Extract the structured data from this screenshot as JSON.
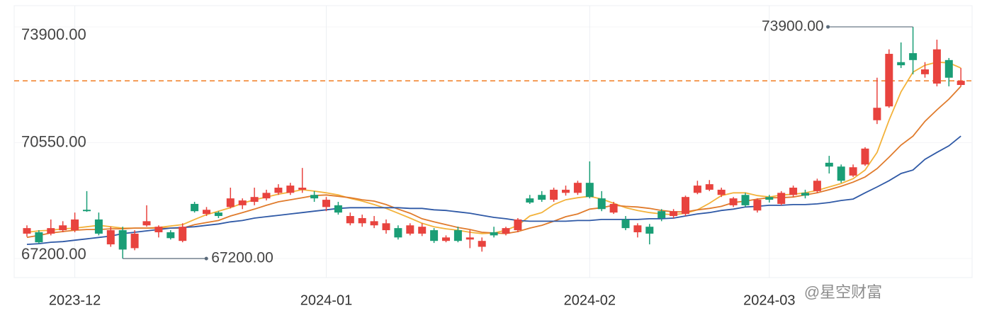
{
  "chart_data": {
    "type": "candlestick",
    "categories": [
      null,
      null,
      null,
      null,
      "2023-12",
      null,
      null,
      null,
      null,
      null,
      null,
      null,
      null,
      null,
      null,
      null,
      null,
      null,
      null,
      null,
      null,
      null,
      null,
      null,
      null,
      "2024-01",
      null,
      null,
      null,
      null,
      null,
      null,
      null,
      null,
      null,
      null,
      null,
      null,
      null,
      null,
      null,
      null,
      null,
      null,
      null,
      null,
      null,
      "2024-02",
      null,
      null,
      null,
      null,
      null,
      null,
      null,
      null,
      null,
      null,
      null,
      null,
      null,
      null,
      "2024-03",
      null,
      null,
      null,
      null,
      null,
      null,
      null,
      null,
      null,
      null,
      null,
      null,
      null,
      null,
      null,
      null
    ],
    "open": [
      67920,
      67960,
      67920,
      68020,
      68020,
      68610,
      68330,
      67610,
      68020,
      67500,
      68160,
      67960,
      67960,
      67710,
      68780,
      68490,
      68530,
      68690,
      68740,
      68840,
      68940,
      69100,
      69100,
      69190,
      69040,
      68690,
      68740,
      68220,
      68220,
      68160,
      68020,
      68080,
      67920,
      67920,
      68020,
      67710,
      68020,
      67750,
      67540,
      67960,
      67920,
      68020,
      68940,
      69040,
      68900,
      69100,
      69100,
      69390,
      68940,
      68530,
      68330,
      67960,
      68120,
      68570,
      68430,
      68490,
      69100,
      69190,
      69040,
      68740,
      69040,
      68590,
      68980,
      68780,
      69040,
      69100,
      69150,
      69970,
      69860,
      69600,
      69920,
      71200,
      71600,
      72880,
      73140,
      72530,
      72260,
      72940,
      72220
    ],
    "close": [
      68080,
      67670,
      68080,
      68160,
      68330,
      68570,
      67920,
      68020,
      67460,
      67920,
      68280,
      68120,
      67790,
      68120,
      68570,
      68610,
      68430,
      68940,
      68880,
      68980,
      69100,
      69250,
      69310,
      69250,
      68940,
      68900,
      68530,
      68430,
      68370,
      68280,
      68220,
      67810,
      68160,
      68120,
      67710,
      67810,
      67710,
      67810,
      67710,
      67870,
      68080,
      68330,
      68820,
      68900,
      69190,
      69190,
      69390,
      68980,
      68630,
      68780,
      68080,
      68160,
      67920,
      68370,
      68570,
      68980,
      69310,
      69350,
      69190,
      68940,
      68740,
      68900,
      68900,
      69100,
      69250,
      69020,
      69450,
      69860,
      69450,
      69840,
      70380,
      71560,
      73120,
      72790,
      72940,
      72670,
      73250,
      72430,
      72340
    ],
    "high": [
      68160,
      68020,
      68330,
      68280,
      68530,
      69150,
      68530,
      68120,
      68120,
      68020,
      68740,
      68160,
      68020,
      68220,
      68840,
      68690,
      68570,
      69250,
      68940,
      69250,
      69190,
      69350,
      69390,
      69820,
      69150,
      68980,
      68840,
      68530,
      68470,
      68430,
      68330,
      68160,
      68220,
      68220,
      68080,
      67870,
      68120,
      68020,
      67810,
      68120,
      68120,
      68370,
      69040,
      69150,
      69250,
      69310,
      69450,
      70010,
      69150,
      68840,
      68430,
      68220,
      68200,
      68630,
      68630,
      69020,
      69450,
      69470,
      69250,
      68980,
      69100,
      68940,
      69040,
      69150,
      69310,
      69190,
      69510,
      70170,
      69920,
      69920,
      70420,
      72430,
      73250,
      73450,
      73900,
      72880,
      73530,
      73000,
      72710
    ],
    "low": [
      67830,
      67630,
      67870,
      67960,
      67960,
      68550,
      67870,
      67540,
      67200,
      67440,
      68120,
      67810,
      67750,
      67670,
      68530,
      68430,
      68370,
      68650,
      68630,
      68740,
      68880,
      69040,
      69040,
      69100,
      68840,
      68570,
      68470,
      68160,
      68120,
      68080,
      67920,
      67750,
      67870,
      67850,
      67650,
      67670,
      67670,
      67500,
      67400,
      67810,
      67870,
      67960,
      68780,
      68840,
      68840,
      69020,
      69040,
      68940,
      68570,
      68490,
      68020,
      67810,
      67610,
      68280,
      68370,
      68430,
      69060,
      69150,
      68980,
      68690,
      68690,
      68530,
      68820,
      68740,
      68980,
      68940,
      69100,
      69660,
      69390,
      69560,
      69880,
      71090,
      71560,
      72710,
      72530,
      72430,
      72180,
      72180,
      72180
    ],
    "up_color": "#e8433e",
    "down_color": "#1a9e76",
    "lines": [
      {
        "color": "#f3b23a",
        "values": [
          67960,
          68000,
          68020,
          68060,
          68080,
          68120,
          68160,
          68120,
          68080,
          68080,
          68080,
          68100,
          68140,
          68180,
          68330,
          68470,
          68570,
          68670,
          68800,
          68900,
          68980,
          69060,
          69120,
          69190,
          69150,
          69100,
          69040,
          68940,
          68860,
          68760,
          68650,
          68510,
          68370,
          68220,
          68120,
          68060,
          68020,
          67960,
          67920,
          67940,
          68020,
          68160,
          68430,
          68530,
          68760,
          68900,
          68960,
          69000,
          68920,
          68800,
          68670,
          68590,
          68530,
          68490,
          68470,
          68510,
          68610,
          68800,
          69020,
          69100,
          69100,
          69020,
          68980,
          69040,
          69060,
          69100,
          69170,
          69270,
          69370,
          69510,
          69760,
          70270,
          71200,
          72020,
          72590,
          72790,
          72880,
          72860,
          72710
        ]
      },
      {
        "color": "#e07b2c",
        "values": [
          67810,
          67870,
          67940,
          67980,
          68020,
          68040,
          68040,
          68060,
          68060,
          68080,
          68080,
          68080,
          68080,
          68080,
          68180,
          68240,
          68300,
          68430,
          68530,
          68630,
          68740,
          68840,
          68900,
          68960,
          69020,
          69040,
          69000,
          68960,
          68900,
          68860,
          68760,
          68630,
          68510,
          68350,
          68260,
          68180,
          68100,
          68040,
          67960,
          67940,
          67920,
          67980,
          68080,
          68160,
          68280,
          68410,
          68490,
          68630,
          68670,
          68740,
          68710,
          68690,
          68650,
          68590,
          68550,
          68550,
          68610,
          68650,
          68710,
          68820,
          68860,
          68920,
          68960,
          68960,
          68980,
          69040,
          69100,
          69190,
          69290,
          69410,
          69560,
          69800,
          70130,
          70480,
          70740,
          71170,
          71500,
          71810,
          72180
        ]
      },
      {
        "color": "#2f59a6",
        "values": [
          67610,
          67630,
          67670,
          67690,
          67730,
          67770,
          67810,
          67850,
          67920,
          67960,
          68000,
          68040,
          68080,
          68100,
          68120,
          68160,
          68200,
          68260,
          68300,
          68370,
          68410,
          68450,
          68490,
          68530,
          68570,
          68610,
          68650,
          68670,
          68670,
          68670,
          68670,
          68670,
          68650,
          68650,
          68610,
          68590,
          68550,
          68510,
          68450,
          68390,
          68350,
          68300,
          68280,
          68280,
          68280,
          68280,
          68300,
          68300,
          68330,
          68330,
          68330,
          68330,
          68350,
          68350,
          68370,
          68430,
          68490,
          68530,
          68590,
          68630,
          68690,
          68710,
          68740,
          68740,
          68760,
          68760,
          68780,
          68820,
          68880,
          68920,
          69100,
          69270,
          69450,
          69660,
          69760,
          70070,
          70270,
          70460,
          70740
        ]
      }
    ],
    "last_price_line_color": "#f07c22",
    "ylim": [
      66690,
      74370
    ],
    "yticks": [
      {
        "value": 67200,
        "label": "67200.00"
      },
      {
        "value": 70550,
        "label": "70550.00"
      },
      {
        "value": 73900,
        "label": "73900.00"
      }
    ],
    "max_label": "73900.00",
    "min_label": "67200.00",
    "watermark": "@星空财富"
  }
}
